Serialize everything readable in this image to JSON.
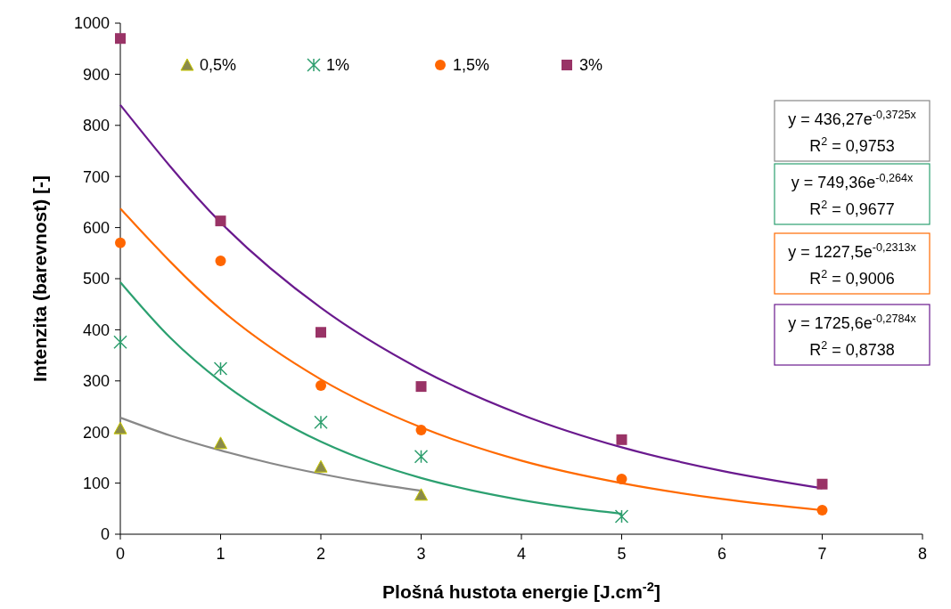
{
  "chart_data": {
    "type": "scatter",
    "xlabel": "Plošná hustota energie [J.cm$^{-2}$]",
    "ylabel": "Intenzita (barevnost) [-]",
    "xlim": [
      0,
      8
    ],
    "xticks": [
      0,
      1,
      2,
      3,
      4,
      5,
      6,
      7,
      8
    ],
    "ylim": [
      0,
      1000
    ],
    "yticks": [
      0,
      100,
      200,
      300,
      400,
      500,
      600,
      700,
      800,
      900,
      1000
    ],
    "grid": false,
    "legend": "top",
    "series": [
      {
        "name": "0,5%",
        "marker": "triangle",
        "color": "#8a8a4a",
        "x": [
          0,
          1,
          2,
          3
        ],
        "values": [
          207,
          178,
          132,
          77
        ]
      },
      {
        "name": "1%",
        "marker": "cross",
        "color": "#2e9e6e",
        "x": [
          0,
          1,
          2,
          3,
          5
        ],
        "values": [
          376,
          324,
          219,
          152,
          35
        ]
      },
      {
        "name": "1,5%",
        "marker": "circle",
        "color": "#ff6600",
        "x": [
          0,
          1,
          2,
          3,
          5,
          7
        ],
        "values": [
          570,
          535,
          291,
          204,
          108,
          47
        ]
      },
      {
        "name": "3%",
        "marker": "square",
        "color": "#993366",
        "x": [
          0,
          1,
          2,
          3,
          5,
          7
        ],
        "values": [
          970,
          613,
          395,
          289,
          185,
          98
        ]
      },
      {
        "type": "line",
        "marker": "none",
        "color": "#888888",
        "x": [
          0,
          0.5,
          1,
          1.5,
          2,
          2.5,
          3
        ],
        "values": [
          228,
          193,
          164,
          139,
          118,
          100,
          85
        ]
      },
      {
        "type": "line",
        "marker": "none",
        "color": "#2ca070",
        "x": [
          0,
          0.5,
          1,
          1.5,
          2,
          2.5,
          3,
          3.5,
          4,
          4.5,
          5
        ],
        "values": [
          493,
          384,
          299,
          233,
          181,
          141,
          110,
          86,
          67,
          52,
          40
        ]
      },
      {
        "type": "line",
        "marker": "none",
        "color": "#ff6a00",
        "x": [
          0,
          1,
          2,
          3,
          4,
          5,
          6,
          7
        ],
        "values": [
          637,
          440,
          303,
          209,
          144,
          100,
          69,
          47
        ]
      },
      {
        "type": "line",
        "marker": "none",
        "color": "#6a1a8e",
        "x": [
          0,
          1,
          2,
          3,
          4,
          5,
          6,
          7
        ],
        "values": [
          840,
          610,
          443,
          322,
          234,
          170,
          124,
          90
        ]
      }
    ],
    "annotations": [
      "y = 436,27e$^{-0,3725x}$",
      "R$^{2}$ = 0,9753",
      "y = 749,36e$^{-0,264x}$",
      "R$^{2}$ = 0,9677",
      "y = 1227,5e$^{-0,2313x}$",
      "R$^{2}$ = 0,9006",
      "y = 1725,6e$^{-0,2784x}$",
      "R$^{2}$ = 0,8738"
    ]
  }
}
